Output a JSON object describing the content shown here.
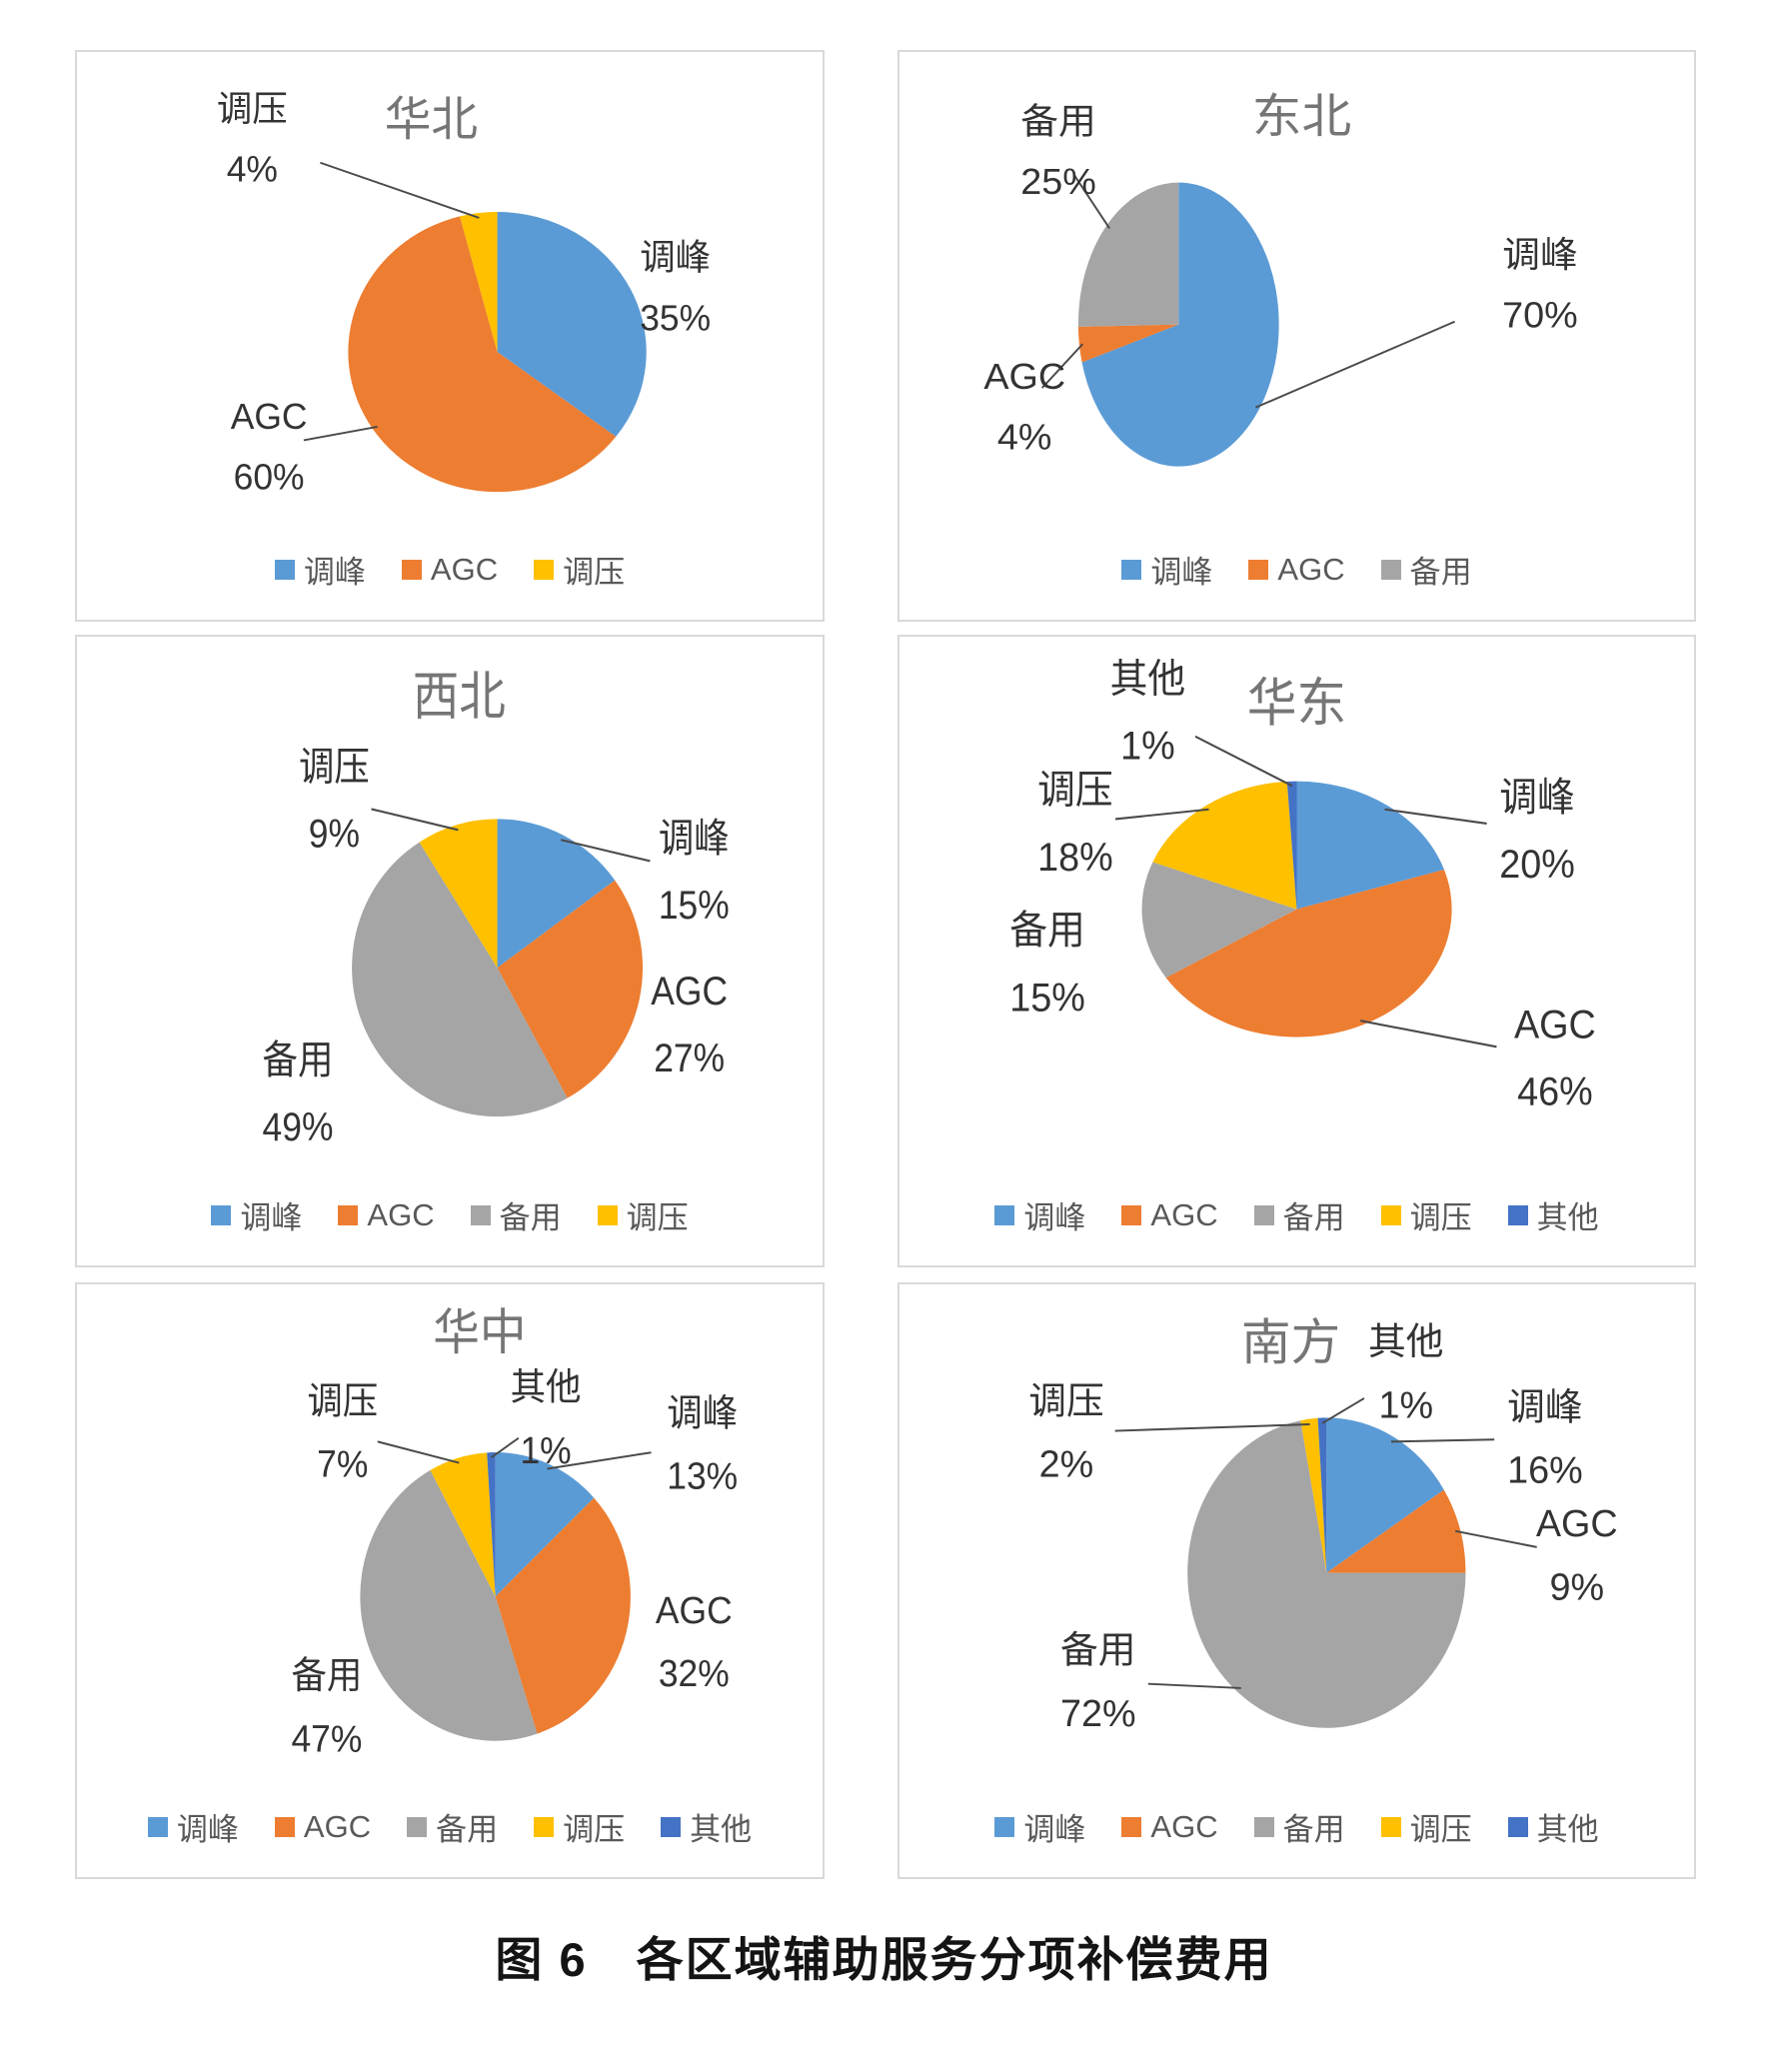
{
  "page": {
    "caption": "图 6　各区域辅助服务分项补偿费用"
  },
  "palette": {
    "调峰": "#5B9BD5",
    "AGC": "#ED7D31",
    "备用": "#A5A5A5",
    "调压": "#FFC000",
    "其他": "#4472C4"
  },
  "chart_data": [
    {
      "type": "pie",
      "title": "华北",
      "value_unit": "%",
      "legend_position": "bottom",
      "slices": [
        {
          "label": "调峰",
          "value": 35
        },
        {
          "label": "AGC",
          "value": 60
        },
        {
          "label": "调压",
          "value": 4
        }
      ],
      "legend": [
        "调峰",
        "AGC",
        "调压"
      ]
    },
    {
      "type": "pie",
      "title": "东北",
      "value_unit": "%",
      "legend_position": "bottom",
      "slices": [
        {
          "label": "调峰",
          "value": 70
        },
        {
          "label": "AGC",
          "value": 4
        },
        {
          "label": "备用",
          "value": 25
        }
      ],
      "legend": [
        "调峰",
        "AGC",
        "备用"
      ]
    },
    {
      "type": "pie",
      "title": "西北",
      "value_unit": "%",
      "legend_position": "bottom",
      "slices": [
        {
          "label": "调峰",
          "value": 15
        },
        {
          "label": "AGC",
          "value": 27
        },
        {
          "label": "备用",
          "value": 49
        },
        {
          "label": "调压",
          "value": 9
        }
      ],
      "legend": [
        "调峰",
        "AGC",
        "备用",
        "调压"
      ]
    },
    {
      "type": "pie",
      "title": "华东",
      "value_unit": "%",
      "legend_position": "bottom",
      "slices": [
        {
          "label": "调峰",
          "value": 20
        },
        {
          "label": "AGC",
          "value": 46
        },
        {
          "label": "备用",
          "value": 15
        },
        {
          "label": "调压",
          "value": 18
        },
        {
          "label": "其他",
          "value": 1
        }
      ],
      "legend": [
        "调峰",
        "AGC",
        "备用",
        "调压",
        "其他"
      ]
    },
    {
      "type": "pie",
      "title": "华中",
      "value_unit": "%",
      "legend_position": "bottom",
      "slices": [
        {
          "label": "调峰",
          "value": 13
        },
        {
          "label": "AGC",
          "value": 32
        },
        {
          "label": "备用",
          "value": 47
        },
        {
          "label": "调压",
          "value": 7
        },
        {
          "label": "其他",
          "value": 1
        }
      ],
      "legend": [
        "调峰",
        "AGC",
        "备用",
        "调压",
        "其他"
      ]
    },
    {
      "type": "pie",
      "title": "南方",
      "value_unit": "%",
      "legend_position": "bottom",
      "slices": [
        {
          "label": "调峰",
          "value": 16
        },
        {
          "label": "AGC",
          "value": 9
        },
        {
          "label": "备用",
          "value": 72
        },
        {
          "label": "调压",
          "value": 2
        },
        {
          "label": "其他",
          "value": 1
        }
      ],
      "legend": [
        "调峰",
        "AGC",
        "备用",
        "调压",
        "其他"
      ]
    }
  ]
}
